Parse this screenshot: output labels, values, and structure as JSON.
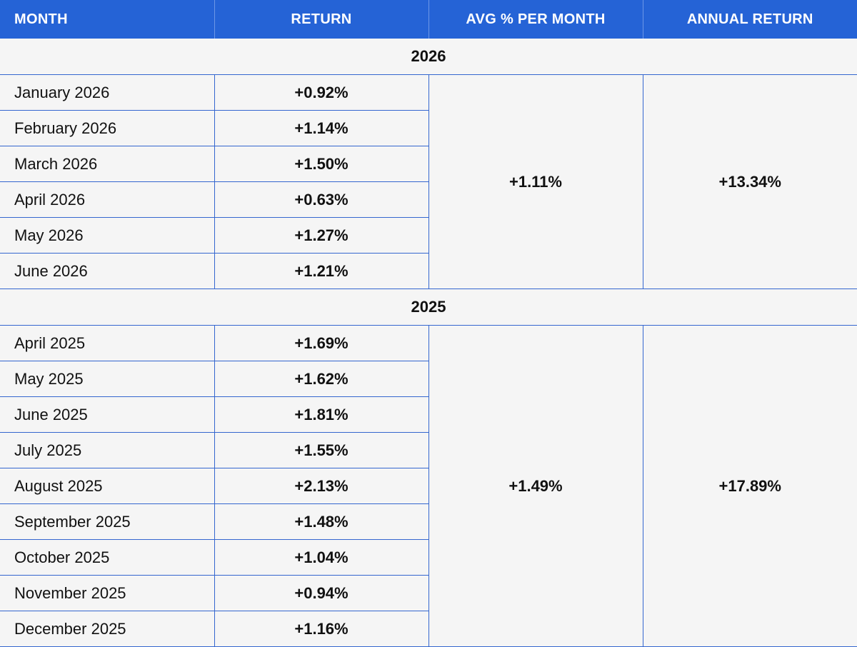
{
  "columns": {
    "month": "MONTH",
    "return": "RETURN",
    "avg": "AVG % PER MONTH",
    "annual": "ANNUAL RETURN"
  },
  "groups": [
    {
      "year": "2026",
      "avg": "+1.11%",
      "annual": "+13.34%",
      "rows": [
        {
          "month": "January 2026",
          "return": "+0.92%"
        },
        {
          "month": "February 2026",
          "return": "+1.14%"
        },
        {
          "month": "March 2026",
          "return": "+1.50%"
        },
        {
          "month": "April 2026",
          "return": "+0.63%"
        },
        {
          "month": "May 2026",
          "return": "+1.27%"
        },
        {
          "month": "June 2026",
          "return": "+1.21%"
        }
      ]
    },
    {
      "year": "2025",
      "avg": "+1.49%",
      "annual": "+17.89%",
      "rows": [
        {
          "month": "April 2025",
          "return": "+1.69%"
        },
        {
          "month": "May 2025",
          "return": "+1.62%"
        },
        {
          "month": "June 2025",
          "return": "+1.81%"
        },
        {
          "month": "July 2025",
          "return": "+1.55%"
        },
        {
          "month": "August 2025",
          "return": "+2.13%"
        },
        {
          "month": "September 2025",
          "return": "+1.48%"
        },
        {
          "month": "October 2025",
          "return": "+1.04%"
        },
        {
          "month": "November 2025",
          "return": "+0.94%"
        },
        {
          "month": "December 2025",
          "return": "+1.16%"
        }
      ]
    }
  ],
  "colors": {
    "header_bg": "#2563d6",
    "header_text": "#ffffff",
    "grid": "#3466cf",
    "body_bg": "#f5f5f5"
  },
  "chart_data": {
    "type": "table",
    "columns": [
      "MONTH",
      "RETURN",
      "AVG % PER MONTH",
      "ANNUAL RETURN"
    ],
    "groups": [
      {
        "year": "2026",
        "avg_per_month": 1.11,
        "annual_return": 13.34,
        "months": [
          "January 2026",
          "February 2026",
          "March 2026",
          "April 2026",
          "May 2026",
          "June 2026"
        ],
        "returns": [
          0.92,
          1.14,
          1.5,
          0.63,
          1.27,
          1.21
        ]
      },
      {
        "year": "2025",
        "avg_per_month": 1.49,
        "annual_return": 17.89,
        "months": [
          "April 2025",
          "May 2025",
          "June 2025",
          "July 2025",
          "August 2025",
          "September 2025",
          "October 2025",
          "November 2025",
          "December 2025"
        ],
        "returns": [
          1.69,
          1.62,
          1.81,
          1.55,
          2.13,
          1.48,
          1.04,
          0.94,
          1.16
        ]
      }
    ]
  }
}
